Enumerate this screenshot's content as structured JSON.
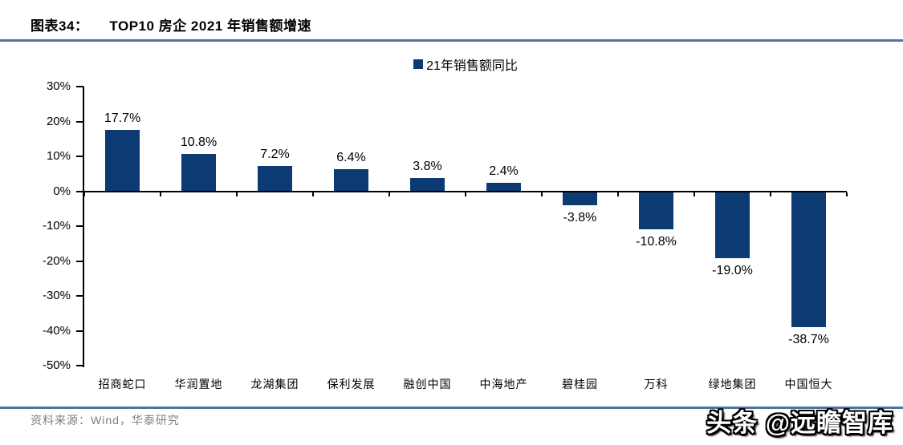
{
  "header": {
    "figure_label": "图表34：",
    "title": "TOP10 房企 2021 年销售额增速"
  },
  "legend": {
    "label": "21年销售额同比"
  },
  "chart_data": {
    "type": "bar",
    "title": "TOP10 房企 2021 年销售额增速",
    "categories": [
      "招商蛇口",
      "华润置地",
      "龙湖集团",
      "保利发展",
      "融创中国",
      "中海地产",
      "碧桂园",
      "万科",
      "绿地集团",
      "中国恒大"
    ],
    "series": [
      {
        "name": "21年销售额同比",
        "values": [
          17.7,
          10.8,
          7.2,
          6.4,
          3.8,
          2.4,
          -3.8,
          -10.8,
          -19.0,
          -38.7
        ]
      }
    ],
    "value_labels": [
      "17.7%",
      "10.8%",
      "7.2%",
      "6.4%",
      "3.8%",
      "2.4%",
      "-3.8%",
      "-10.8%",
      "-19.0%",
      "-38.7%"
    ],
    "xlabel": "",
    "ylabel": "",
    "ylim": [
      -50,
      30
    ],
    "ytick_step": 10,
    "ytick_labels": [
      "30%",
      "20%",
      "10%",
      "0%",
      "-10%",
      "-20%",
      "-30%",
      "-40%",
      "-50%"
    ],
    "grid": false,
    "legend_position": "top-center",
    "bar_color": "#0c3a73"
  },
  "footer": {
    "source": "资料来源：Wind，华泰研究",
    "watermark": "头条 @远瞻智库"
  },
  "colors": {
    "bar": "#0c3a73",
    "rule": "#4f749e",
    "axis": "#000000",
    "source_text": "#7f7f7f",
    "label_text": "#000000"
  }
}
